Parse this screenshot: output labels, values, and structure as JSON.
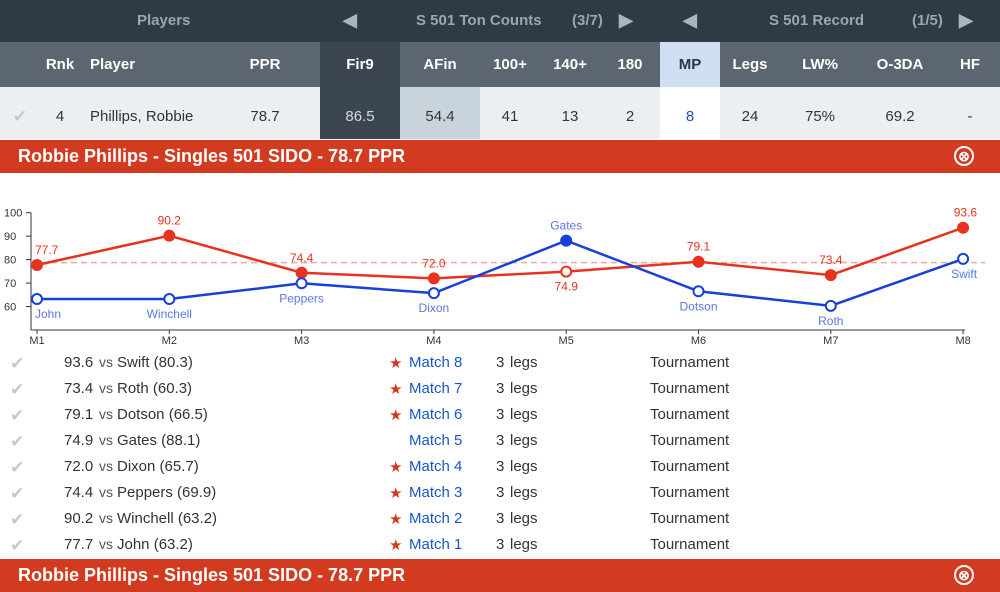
{
  "topbar": {
    "players": "Players",
    "ton_counts": "S 501 Ton Counts",
    "ton_page": "(3/7)",
    "record": "S 501 Record",
    "record_page": "(1/5)",
    "left_arrow": "◀",
    "right_arrow": "▶"
  },
  "headers": {
    "rnk": "Rnk",
    "player": "Player",
    "ppr": "PPR",
    "fir9": "Fir9",
    "afin": "AFin",
    "t100": "100+",
    "t140": "140+",
    "t180": "180",
    "mp": "MP",
    "legs": "Legs",
    "lwpct": "LW%",
    "o3da": "O-3DA",
    "hf": "HF"
  },
  "row": {
    "check": "✔",
    "rnk": "4",
    "player": "Phillips, Robbie",
    "ppr": "78.7",
    "fir9": "86.5",
    "afin": "54.4",
    "t100": "41",
    "t140": "13",
    "t180": "2",
    "mp": "8",
    "legs": "24",
    "lwpct": "75%",
    "o3da": "69.2",
    "hf": "-"
  },
  "panel": {
    "title": "Robbie Phillips - Singles 501 SIDO - 78.7 PPR",
    "close_icon": "⊗"
  },
  "colors": {
    "player": "#e8321f",
    "opponent": "#1640d8",
    "average": "#f0a9a2"
  },
  "chart_data": {
    "type": "line",
    "categories": [
      "M1",
      "M2",
      "M3",
      "M4",
      "M5",
      "M6",
      "M7",
      "M8"
    ],
    "series": [
      {
        "values": [
          77.7,
          90.2,
          74.4,
          72.0,
          74.9,
          79.1,
          73.4,
          93.6
        ],
        "labels": [
          "77.7",
          "90.2",
          "74.4",
          "72.0",
          "74.9",
          "79.1",
          "73.4",
          "93.6"
        ]
      },
      {
        "values": [
          63.2,
          63.2,
          69.9,
          65.7,
          88.1,
          66.5,
          60.3,
          80.3
        ],
        "labels": [
          "John",
          "Winchell",
          "Peppers",
          "Dixon",
          "Gates",
          "Dotson",
          "Roth",
          "Swift"
        ]
      }
    ],
    "average": 78.7,
    "yticks": [
      60,
      70,
      80,
      90,
      100
    ],
    "ylim": [
      50,
      102
    ],
    "grid": false,
    "legend": "none"
  },
  "matches": [
    {
      "check": "✔",
      "score": "93.6",
      "vs": "vs",
      "opponent": "Swift (80.3)",
      "star": "★",
      "match": "Match 8",
      "legs_count": "3",
      "legs_label": "legs",
      "type": "Tournament"
    },
    {
      "check": "✔",
      "score": "73.4",
      "vs": "vs",
      "opponent": "Roth (60.3)",
      "star": "★",
      "match": "Match 7",
      "legs_count": "3",
      "legs_label": "legs",
      "type": "Tournament"
    },
    {
      "check": "✔",
      "score": "79.1",
      "vs": "vs",
      "opponent": "Dotson (66.5)",
      "star": "★",
      "match": "Match 6",
      "legs_count": "3",
      "legs_label": "legs",
      "type": "Tournament"
    },
    {
      "check": "✔",
      "score": "74.9",
      "vs": "vs",
      "opponent": "Gates (88.1)",
      "star": "",
      "match": "Match 5",
      "legs_count": "3",
      "legs_label": "legs",
      "type": "Tournament"
    },
    {
      "check": "✔",
      "score": "72.0",
      "vs": "vs",
      "opponent": "Dixon (65.7)",
      "star": "★",
      "match": "Match 4",
      "legs_count": "3",
      "legs_label": "legs",
      "type": "Tournament"
    },
    {
      "check": "✔",
      "score": "74.4",
      "vs": "vs",
      "opponent": "Peppers (69.9)",
      "star": "★",
      "match": "Match 3",
      "legs_count": "3",
      "legs_label": "legs",
      "type": "Tournament"
    },
    {
      "check": "✔",
      "score": "90.2",
      "vs": "vs",
      "opponent": "Winchell (63.2)",
      "star": "★",
      "match": "Match 2",
      "legs_count": "3",
      "legs_label": "legs",
      "type": "Tournament"
    },
    {
      "check": "✔",
      "score": "77.7",
      "vs": "vs",
      "opponent": "John (63.2)",
      "star": "★",
      "match": "Match 1",
      "legs_count": "3",
      "legs_label": "legs",
      "type": "Tournament"
    }
  ]
}
